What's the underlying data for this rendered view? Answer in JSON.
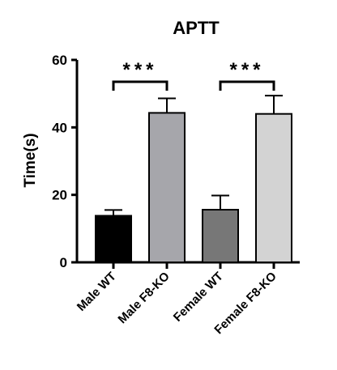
{
  "chart_data": {
    "type": "bar",
    "title": "APTT",
    "xlabel": "",
    "ylabel": "Time(s)",
    "ylim": [
      0,
      60
    ],
    "yticks": [
      0,
      20,
      40,
      60
    ],
    "categories": [
      "Male WT",
      "Male F8-KO",
      "Female WT",
      "Female F8-KO"
    ],
    "values": [
      13.8,
      44.3,
      15.6,
      44.0
    ],
    "error_upper": [
      15.5,
      48.6,
      19.8,
      49.4
    ],
    "bar_colors": [
      "#000000",
      "#a6a6ab",
      "#777777",
      "#d3d3d3"
    ],
    "grid": false,
    "significance": [
      {
        "from": 0,
        "to": 1,
        "label": "***"
      },
      {
        "from": 2,
        "to": 3,
        "label": "***"
      }
    ]
  }
}
